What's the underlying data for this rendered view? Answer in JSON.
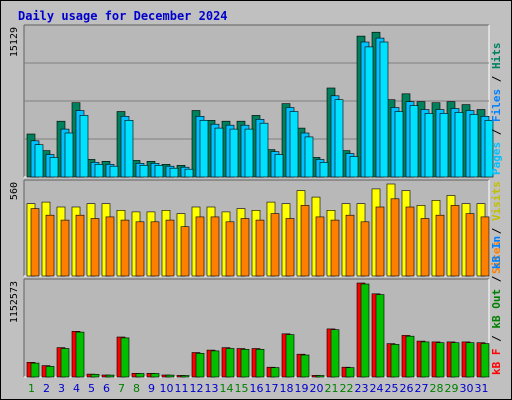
{
  "title": "Daily usage for December 2024",
  "colors": {
    "background": "#c0c0c0",
    "plot_bg": "#b8b8b8",
    "gridline": "#808080",
    "title": "#0000cc",
    "weekday": "#0000cc",
    "weekend": "#008000",
    "hits": "#00805c",
    "files": "#00c0ff",
    "pages": "#00e0ff",
    "visits": "#ffff00",
    "sites": "#ff8000",
    "kb_in": "#00c000",
    "kb_out": "#ff0000"
  },
  "legends": {
    "top": [
      {
        "key": "pages",
        "text": "Pages",
        "color": "#00c0ff"
      },
      {
        "key": "sep1",
        "text": " / ",
        "color": "#000000"
      },
      {
        "key": "files",
        "text": "Files",
        "color": "#0080ff"
      },
      {
        "key": "sep2",
        "text": " / ",
        "color": "#000000"
      },
      {
        "key": "hits",
        "text": "Hits",
        "color": "#008060"
      }
    ],
    "middle": [
      {
        "key": "sites",
        "text": "Sites",
        "color": "#ff8000"
      },
      {
        "key": "sep1",
        "text": " / ",
        "color": "#000000"
      },
      {
        "key": "visits",
        "text": "Visits",
        "color": "#c0c000"
      }
    ],
    "bottom": [
      {
        "key": "kb_f",
        "text": "kB F",
        "color": "#ff0000"
      },
      {
        "key": "sep1",
        "text": " / ",
        "color": "#000000"
      },
      {
        "key": "kb_out",
        "text": "kB Out",
        "color": "#008000"
      },
      {
        "key": "sep2",
        "text": " / ",
        "color": "#000000"
      },
      {
        "key": "kb_in",
        "text": "kB In",
        "color": "#0080ff"
      }
    ]
  },
  "chart_data": [
    {
      "type": "bar",
      "panel": "top",
      "y_max_label": "15129",
      "ylim": [
        0,
        15129
      ],
      "categories": [
        "1",
        "2",
        "3",
        "4",
        "5",
        "6",
        "7",
        "8",
        "9",
        "10",
        "11",
        "12",
        "13",
        "14",
        "15",
        "16",
        "17",
        "18",
        "19",
        "20",
        "21",
        "22",
        "23",
        "24",
        "25",
        "26",
        "27",
        "28",
        "29",
        "30",
        "31"
      ],
      "weekend_days": [
        "1",
        "7",
        "8",
        "14",
        "15",
        "21",
        "22",
        "28",
        "29"
      ],
      "series": [
        {
          "name": "Hits",
          "color": "#00805c",
          "values": [
            4400,
            2700,
            5700,
            7600,
            1800,
            1600,
            6700,
            1700,
            1600,
            1300,
            1200,
            6800,
            5800,
            5700,
            5700,
            6300,
            2800,
            7500,
            5000,
            2000,
            9100,
            2700,
            14400,
            14800,
            7900,
            8500,
            7700,
            7600,
            7700,
            7400,
            6900
          ]
        },
        {
          "name": "Files",
          "color": "#00c0ff",
          "values": [
            3700,
            2300,
            4900,
            6800,
            1500,
            1300,
            6200,
            1400,
            1400,
            1100,
            1000,
            6200,
            5400,
            5300,
            5300,
            5900,
            2600,
            7100,
            4500,
            1800,
            8300,
            2400,
            13800,
            14200,
            7100,
            7700,
            6900,
            6900,
            7000,
            6800,
            6200
          ]
        },
        {
          "name": "Pages",
          "color": "#00e0ff",
          "values": [
            3300,
            2000,
            4500,
            6300,
            1300,
            1100,
            5800,
            1200,
            1200,
            900,
            800,
            5800,
            5000,
            4900,
            4900,
            5500,
            2300,
            6700,
            4100,
            1500,
            7900,
            2100,
            13300,
            13800,
            6700,
            7300,
            6500,
            6500,
            6600,
            6400,
            5800
          ]
        }
      ]
    },
    {
      "type": "bar",
      "panel": "middle",
      "y_max_label": "560",
      "ylim": [
        0,
        560
      ],
      "categories": [
        "1",
        "2",
        "3",
        "4",
        "5",
        "6",
        "7",
        "8",
        "9",
        "10",
        "11",
        "12",
        "13",
        "14",
        "15",
        "16",
        "17",
        "18",
        "19",
        "20",
        "21",
        "22",
        "23",
        "24",
        "25",
        "26",
        "27",
        "28",
        "29",
        "30",
        "31"
      ],
      "series": [
        {
          "name": "Visits",
          "color": "#ffff00",
          "values": [
            440,
            450,
            420,
            420,
            440,
            440,
            400,
            390,
            390,
            400,
            380,
            420,
            420,
            390,
            410,
            400,
            450,
            440,
            520,
            480,
            400,
            440,
            440,
            530,
            560,
            520,
            430,
            460,
            490,
            440,
            440
          ]
        },
        {
          "name": "Sites",
          "color": "#ff8000",
          "values": [
            410,
            370,
            340,
            370,
            350,
            360,
            340,
            330,
            330,
            340,
            300,
            360,
            360,
            330,
            350,
            340,
            380,
            350,
            430,
            360,
            340,
            370,
            330,
            420,
            470,
            420,
            350,
            370,
            430,
            380,
            360
          ]
        }
      ]
    },
    {
      "type": "bar",
      "panel": "bottom",
      "y_max_label": "1152573",
      "ylim": [
        0,
        1152573
      ],
      "categories": [
        "1",
        "2",
        "3",
        "4",
        "5",
        "6",
        "7",
        "8",
        "9",
        "10",
        "11",
        "12",
        "13",
        "14",
        "15",
        "16",
        "17",
        "18",
        "19",
        "20",
        "21",
        "22",
        "23",
        "24",
        "25",
        "26",
        "27",
        "28",
        "29",
        "30",
        "31"
      ],
      "series": [
        {
          "name": "kB F",
          "color": "#ff0000",
          "values": [
            180000,
            140000,
            360000,
            560000,
            35000,
            25000,
            490000,
            45000,
            45000,
            25000,
            20000,
            300000,
            330000,
            360000,
            350000,
            350000,
            120000,
            530000,
            280000,
            20000,
            590000,
            120000,
            1152573,
            1020000,
            410000,
            510000,
            440000,
            430000,
            430000,
            430000,
            420000
          ]
        },
        {
          "name": "kB In",
          "color": "#00c000",
          "values": [
            170000,
            130000,
            350000,
            550000,
            33000,
            23000,
            480000,
            43000,
            43000,
            23000,
            18000,
            290000,
            320000,
            350000,
            340000,
            340000,
            115000,
            520000,
            270000,
            18000,
            580000,
            115000,
            1140000,
            1010000,
            400000,
            500000,
            430000,
            420000,
            420000,
            420000,
            410000
          ]
        }
      ]
    }
  ]
}
